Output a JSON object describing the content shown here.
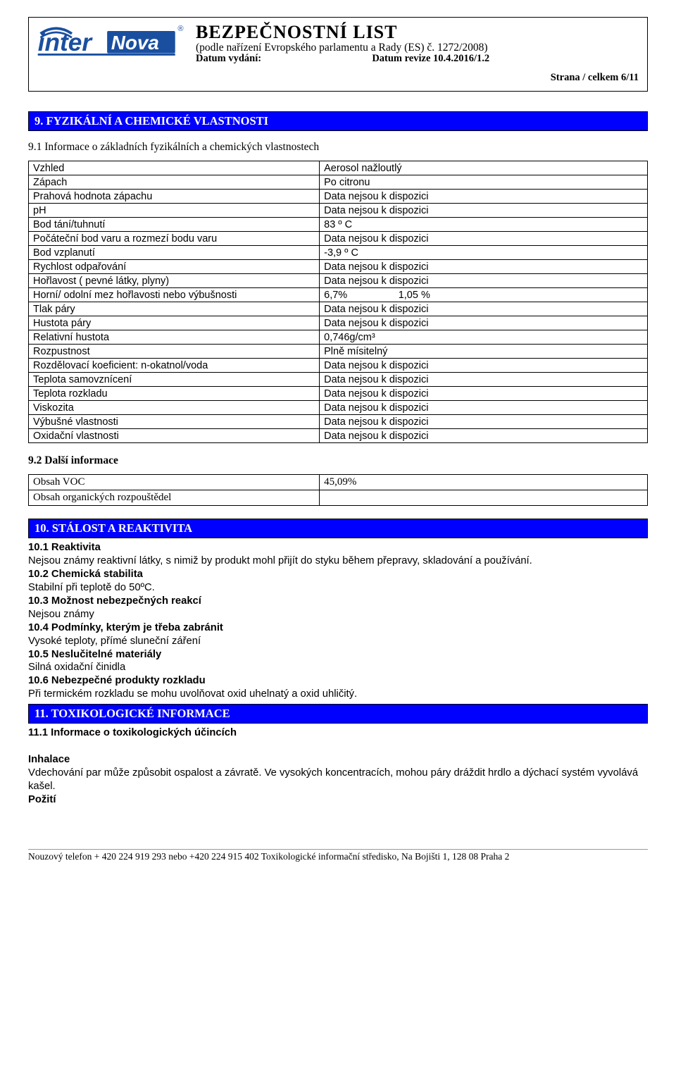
{
  "header": {
    "main_title": "BEZPEČNOSTNÍ LIST",
    "subtitle": "(podle nařízení Evropského parlamentu a Rady (ES) č. 1272/2008)",
    "date_issue_label": "Datum vydání:",
    "date_rev_label": "Datum revize 10.4.2016/1.2",
    "page_label": "Strana / celkem 6/11",
    "logo": {
      "text_inter": "inter",
      "text_nova": "Nova",
      "arc_color": "#1a4fa0",
      "nova_fill": "#1a4fa0",
      "reg_mark": "®"
    }
  },
  "section9": {
    "bar": "9. FYZIKÁLNÍ A CHEMICKÉ VLASTNOSTI",
    "sub": "9.1 Informace o základních fyzikálních a chemických vlastnostech",
    "rows": [
      {
        "k": "Vzhled",
        "v": "Aerosol nažloutlý"
      },
      {
        "k": "Zápach",
        "v": "Po citronu"
      },
      {
        "k": "Prahová hodnota zápachu",
        "v": "Data nejsou k dispozici"
      },
      {
        "k": "pH",
        "v": "Data nejsou k dispozici"
      },
      {
        "k": "Bod tání/tuhnutí",
        "v": "83 º C"
      },
      {
        "k": "Počáteční bod varu a rozmezí bodu varu",
        "v": "Data nejsou k dispozici"
      },
      {
        "k": "Bod vzplanutí",
        "v": "-3,9 º C"
      },
      {
        "k": "Rychlost odpařování",
        "v": "Data nejsou k dispozici"
      },
      {
        "k": "Hořlavost ( pevné látky, plyny)",
        "v": "Data nejsou k dispozici"
      },
      {
        "k": "Horní/ odolní mez hořlavosti nebo výbušnosti",
        "v": "6,7%                  1,05 %"
      },
      {
        "k": "Tlak páry",
        "v": "Data nejsou k dispozici"
      },
      {
        "k": "Hustota páry",
        "v": "Data nejsou k dispozici"
      },
      {
        "k": "Relativní hustota",
        "v": "0,746g/cm³"
      },
      {
        "k": "Rozpustnost",
        "v": "Plně mísitelný"
      },
      {
        "k": "Rozdělovací koeficient: n-okatnol/voda",
        "v": "Data nejsou k dispozici"
      },
      {
        "k": "Teplota samovznícení",
        "v": "Data nejsou k dispozici"
      },
      {
        "k": "Teplota rozkladu",
        "v": "Data nejsou k dispozici"
      },
      {
        "k": "Viskozita",
        "v": "Data nejsou k dispozici"
      },
      {
        "k": "Výbušné vlastnosti",
        "v": "Data nejsou k dispozici"
      },
      {
        "k": "Oxidační vlastnosti",
        "v": "Data nejsou k dispozici"
      }
    ],
    "sub2": "9.2 Další informace",
    "table2": {
      "r1k": "Obsah VOC",
      "r1v": "45,09%",
      "r2k": "Obsah organických rozpouštědel",
      "r2v": ""
    }
  },
  "section10": {
    "bar": "10. STÁLOST A REAKTIVITA",
    "l1b": "10.1 Reaktivita",
    "l1": "Nejsou známy reaktivní látky, s nimiž by produkt mohl přijít do styku během přepravy, skladování a používání.",
    "l2b": "10.2 Chemická stabilita",
    "l2": "Stabilní při teplotě do 50ºC.",
    "l3b": "10.3 Možnost nebezpečných reakcí",
    "l3": "Nejsou známy",
    "l4b": "10.4 Podmínky, kterým je třeba zabránit",
    "l4": "Vysoké teploty, přímé sluneční záření",
    "l5b": "10.5 Neslučitelné materiály",
    "l5": "Silná oxidační činidla",
    "l6b": "10.6 Nebezpečné produkty rozkladu",
    "l6": "Při termickém rozkladu se mohu uvolňovat oxid uhelnatý a oxid uhličitý."
  },
  "section11": {
    "bar": "11. TOXIKOLOGICKÉ INFORMACE",
    "sub": "11.1 Informace o toxikologických účincích",
    "inh_h": "Inhalace",
    "inh_t": "Vdechování par může způsobit ospalost a závratě. Ve vysokých koncentracích, mohou páry dráždit hrdlo a dýchací systém vyvolává kašel.",
    "poz_h": "Požití"
  },
  "footer": "Nouzový telefon + 420 224 919 293 nebo +420 224 915 402 Toxikologické informační středisko, Na Bojišti 1, 128 08 Praha 2"
}
